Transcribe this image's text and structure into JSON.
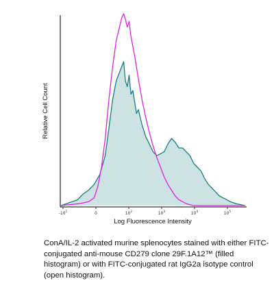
{
  "chart_data": {
    "type": "area",
    "xlabel": "Log Fluorescence Intensity",
    "ylabel": "Relative Cell Count",
    "x_scale": "log",
    "x_tick_labels": [
      "-10",
      "0",
      "10",
      "10",
      "10",
      "10"
    ],
    "x_tick_exponents": [
      "1",
      "",
      "2",
      "3",
      "4",
      "5"
    ],
    "series": [
      {
        "role": "filled",
        "color": "#1a7a80",
        "fill": "#cde3e3",
        "points": [
          [
            0,
            0
          ],
          [
            3,
            1
          ],
          [
            6,
            2
          ],
          [
            9,
            3
          ],
          [
            12,
            6
          ],
          [
            15,
            8
          ],
          [
            18,
            11
          ],
          [
            21,
            16
          ],
          [
            24,
            26
          ],
          [
            26,
            40
          ],
          [
            28,
            55
          ],
          [
            30,
            65
          ],
          [
            32,
            70
          ],
          [
            34,
            75
          ],
          [
            35,
            65
          ],
          [
            36,
            62
          ],
          [
            37,
            68
          ],
          [
            38,
            58
          ],
          [
            39,
            60
          ],
          [
            40,
            54
          ],
          [
            41,
            48
          ],
          [
            42,
            50
          ],
          [
            44,
            42
          ],
          [
            46,
            36
          ],
          [
            48,
            32
          ],
          [
            50,
            28
          ],
          [
            52,
            26
          ],
          [
            54,
            27
          ],
          [
            56,
            28
          ],
          [
            58,
            32
          ],
          [
            60,
            35
          ],
          [
            62,
            33
          ],
          [
            64,
            30
          ],
          [
            66,
            30
          ],
          [
            68,
            28
          ],
          [
            70,
            26
          ],
          [
            72,
            22
          ],
          [
            74,
            20
          ],
          [
            76,
            18
          ],
          [
            78,
            14
          ],
          [
            80,
            11
          ],
          [
            82,
            9
          ],
          [
            84,
            7
          ],
          [
            86,
            5
          ],
          [
            88,
            4
          ],
          [
            90,
            3
          ],
          [
            92,
            2
          ],
          [
            95,
            1
          ],
          [
            100,
            0
          ]
        ]
      },
      {
        "role": "open",
        "color": "#e020e0",
        "points": [
          [
            0,
            0
          ],
          [
            5,
            0.5
          ],
          [
            10,
            1
          ],
          [
            15,
            2
          ],
          [
            18,
            4
          ],
          [
            20,
            10
          ],
          [
            22,
            20
          ],
          [
            24,
            35
          ],
          [
            26,
            55
          ],
          [
            28,
            72
          ],
          [
            30,
            86
          ],
          [
            32,
            94
          ],
          [
            33,
            98
          ],
          [
            34,
            100
          ],
          [
            35,
            97
          ],
          [
            36,
            93
          ],
          [
            37,
            96
          ],
          [
            38,
            88
          ],
          [
            40,
            78
          ],
          [
            42,
            66
          ],
          [
            44,
            55
          ],
          [
            46,
            46
          ],
          [
            48,
            38
          ],
          [
            50,
            31
          ],
          [
            52,
            25
          ],
          [
            54,
            20
          ],
          [
            56,
            15
          ],
          [
            58,
            11
          ],
          [
            60,
            8
          ],
          [
            62,
            5
          ],
          [
            64,
            3
          ],
          [
            66,
            2
          ],
          [
            68,
            1
          ],
          [
            70,
            0.5
          ],
          [
            72,
            0
          ],
          [
            100,
            0
          ]
        ]
      }
    ]
  },
  "caption": "ConA/IL-2 activated murine splenocytes stained with either FITC-conjugated anti-mouse CD279 clone 29F.1A12™ (filled histogram) or with FITC-conjugated rat IgG2a isotype control (open histogram)."
}
